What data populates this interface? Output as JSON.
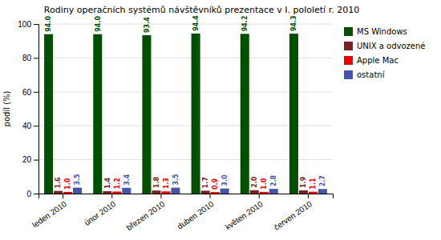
{
  "chart_data": {
    "type": "bar",
    "title": "Rodiny operačních systémů návštěvníků prezentace v I. pololetí r. 2010",
    "y_label": "podíl (%)",
    "categories": [
      "leden 2010",
      "únor 2010",
      "březen 2010",
      "duben 2010",
      "květen 2010",
      "červen 2010"
    ],
    "series": [
      {
        "name": "MS Windows",
        "color": "#005000",
        "values": [
          94.0,
          94.0,
          93.4,
          94.4,
          94.2,
          94.3
        ],
        "value_labels": [
          "94.0",
          "94.0",
          "93.4",
          "94.4",
          "94.2",
          "94.3"
        ]
      },
      {
        "name": "UNIX a odvozené",
        "color": "#7B2020",
        "values": [
          1.6,
          1.4,
          1.8,
          1.7,
          2.0,
          1.9
        ],
        "value_labels": [
          "1.6",
          "1.4",
          "1.8",
          "1.7",
          "2.0",
          "1.9"
        ]
      },
      {
        "name": "Apple Mac",
        "color": "#EE0000",
        "values": [
          1.0,
          1.2,
          1.3,
          0.9,
          1.0,
          1.1
        ],
        "value_labels": [
          "1.0",
          "1.2",
          "1.3",
          "0.9",
          "1.0",
          "1.1"
        ]
      },
      {
        "name": "ostatní",
        "color": "#4455AA",
        "values": [
          3.5,
          3.4,
          3.5,
          3.0,
          2.8,
          2.7
        ],
        "value_labels": [
          "3.5",
          "3.4",
          "3.5",
          "3.0",
          "2.8",
          "2.7"
        ]
      }
    ],
    "ylim": [
      0,
      100
    ],
    "yticks": [
      0,
      20,
      40,
      60,
      80,
      100
    ],
    "grid": true,
    "legend": "right",
    "data_labels": true
  }
}
